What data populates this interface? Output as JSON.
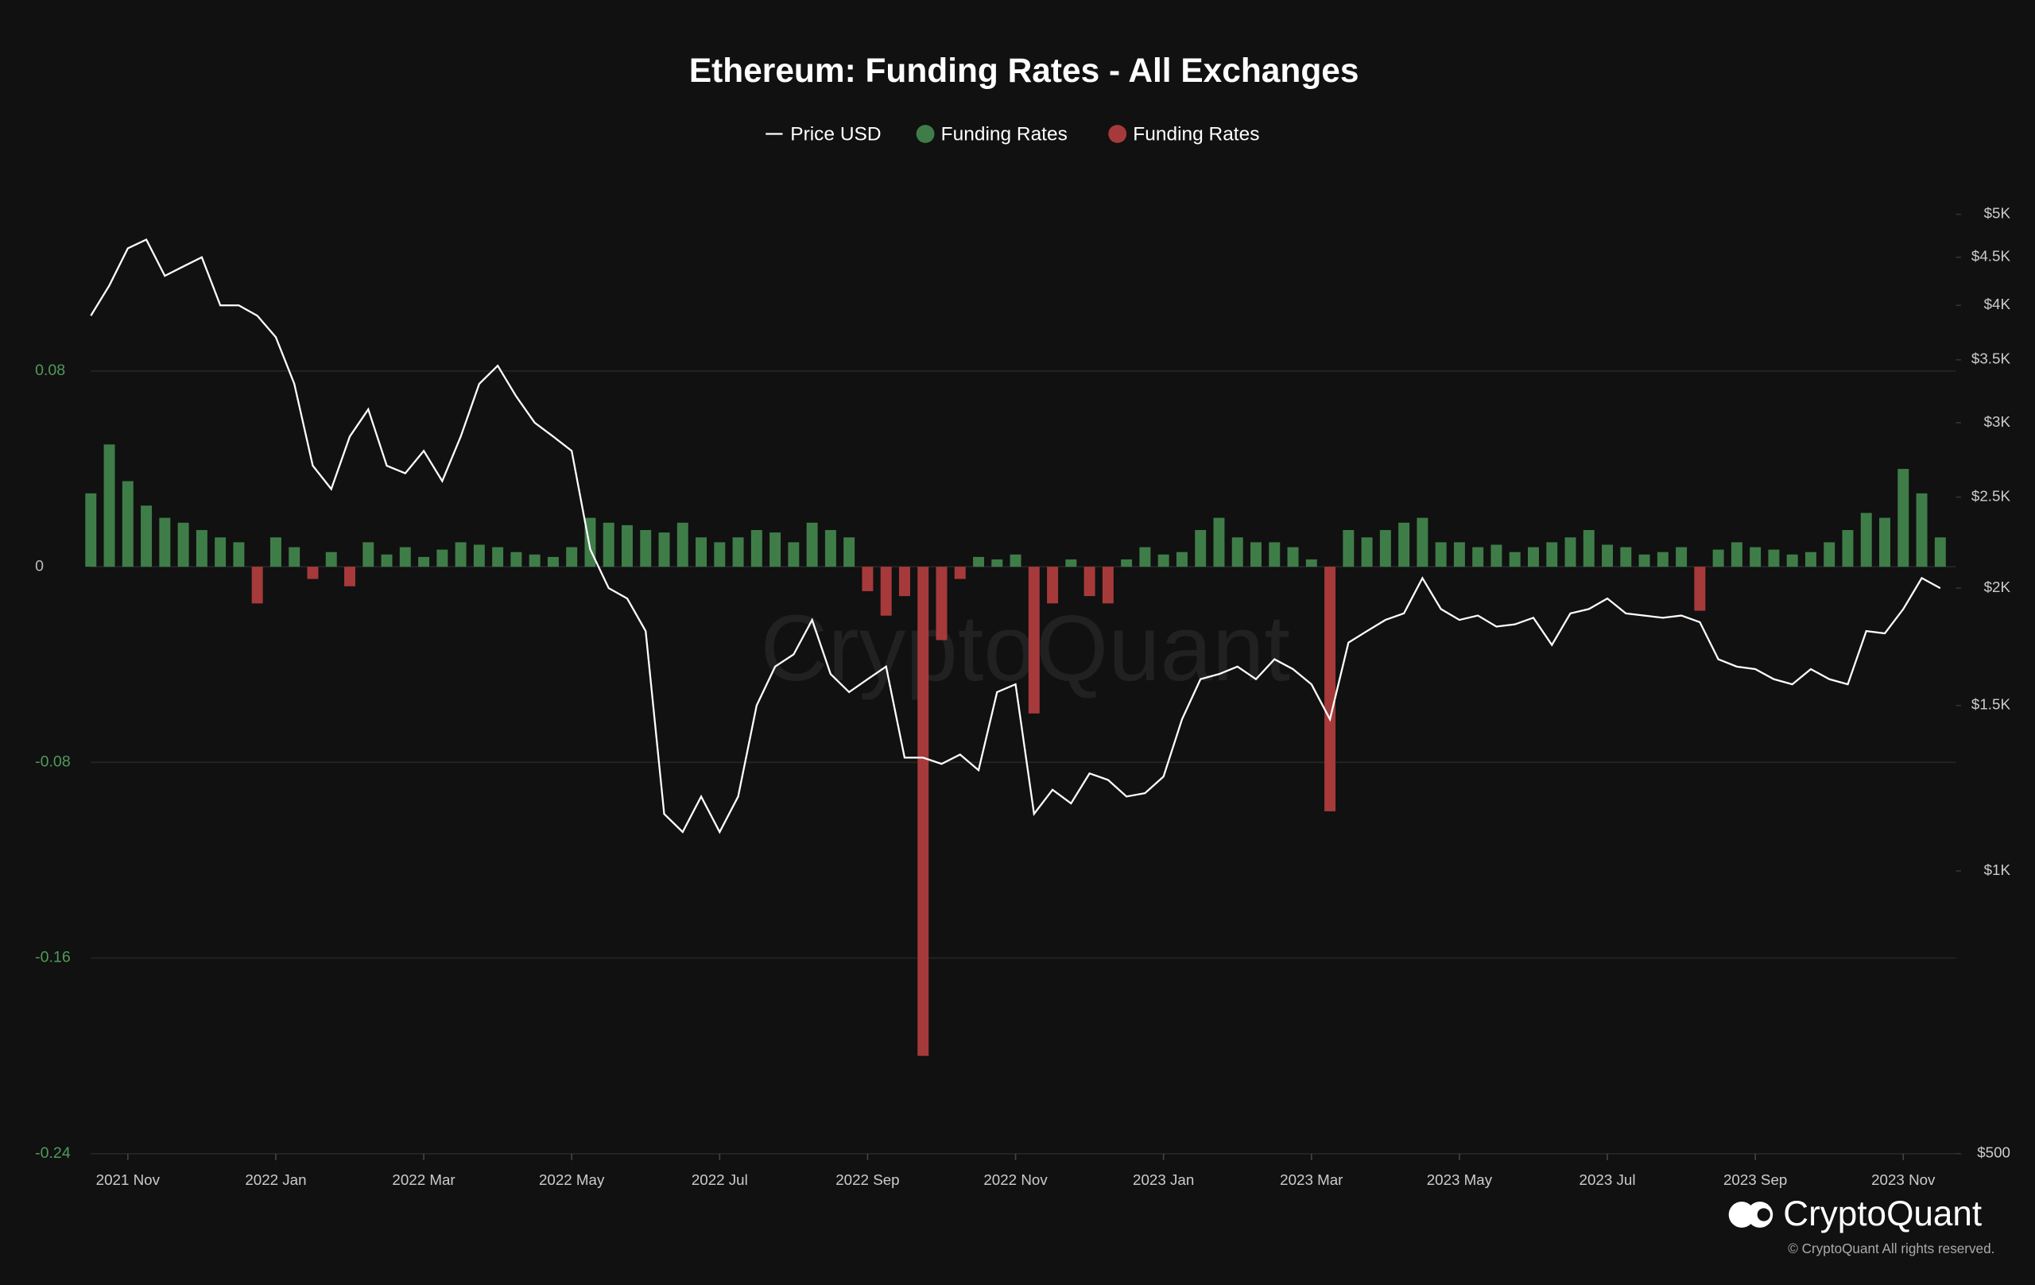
{
  "chart_data": {
    "type": "bar",
    "title": "Ethereum: Funding Rates - All Exchanges",
    "watermark": "CryptoQuant",
    "logo_text": "CryptoQuant",
    "copyright": "© CryptoQuant All rights reserved.",
    "categories": [
      null,
      null,
      "2021 Nov",
      null,
      null,
      null,
      null,
      null,
      null,
      null,
      "2022 Jan",
      null,
      null,
      null,
      null,
      null,
      null,
      null,
      "2022 Mar",
      null,
      null,
      null,
      null,
      null,
      null,
      null,
      "2022 May",
      null,
      null,
      null,
      null,
      null,
      null,
      null,
      "2022 Jul",
      null,
      null,
      null,
      null,
      null,
      null,
      null,
      "2022 Sep",
      null,
      null,
      null,
      null,
      null,
      null,
      null,
      "2022 Nov",
      null,
      null,
      null,
      null,
      null,
      null,
      null,
      "2023 Jan",
      null,
      null,
      null,
      null,
      null,
      null,
      null,
      "2023 Mar",
      null,
      null,
      null,
      null,
      null,
      null,
      null,
      "2023 May",
      null,
      null,
      null,
      null,
      null,
      null,
      null,
      "2023 Jul",
      null,
      null,
      null,
      null,
      null,
      null,
      null,
      "2023 Sep",
      null,
      null,
      null,
      null,
      null,
      null,
      null,
      "2023 Nov",
      null,
      null
    ],
    "series": [
      {
        "name": "Price USD",
        "type": "line",
        "axis": "y2",
        "color": "#ffffff",
        "values": [
          3900,
          4200,
          4600,
          4700,
          4300,
          4400,
          4500,
          4000,
          4000,
          3900,
          3700,
          3300,
          2700,
          2550,
          2900,
          3100,
          2700,
          2650,
          2800,
          2600,
          2900,
          3300,
          3450,
          3200,
          3000,
          2900,
          2800,
          2200,
          2000,
          1950,
          1800,
          1150,
          1100,
          1200,
          1100,
          1200,
          1500,
          1650,
          1700,
          1850,
          1620,
          1550,
          1600,
          1650,
          1320,
          1320,
          1300,
          1330,
          1280,
          1550,
          1580,
          1150,
          1220,
          1180,
          1270,
          1250,
          1200,
          1210,
          1260,
          1450,
          1600,
          1620,
          1650,
          1600,
          1680,
          1640,
          1580,
          1450,
          1750,
          1800,
          1850,
          1880,
          2050,
          1900,
          1850,
          1870,
          1820,
          1830,
          1860,
          1740,
          1880,
          1900,
          1950,
          1880,
          1870,
          1860,
          1870,
          1840,
          1680,
          1650,
          1640,
          1600,
          1580,
          1640,
          1600,
          1580,
          1800,
          1790,
          1900,
          2050,
          2000
        ]
      },
      {
        "name": "Funding Rates",
        "type": "bar",
        "color": "#3f7d48",
        "values": [
          0.03,
          0.05,
          0.035,
          0.025,
          0.02,
          0.018,
          0.015,
          0.012,
          0.01,
          null,
          0.012,
          0.008,
          null,
          0.006,
          null,
          0.01,
          0.005,
          0.008,
          0.004,
          0.007,
          0.01,
          0.009,
          0.008,
          0.006,
          0.005,
          0.004,
          0.008,
          0.02,
          0.018,
          0.017,
          0.015,
          0.014,
          0.018,
          0.012,
          0.01,
          0.012,
          0.015,
          0.014,
          0.01,
          0.018,
          0.015,
          0.012,
          null,
          null,
          null,
          null,
          null,
          null,
          0.004,
          0.003,
          0.005,
          null,
          null,
          0.003,
          null,
          null,
          0.003,
          0.008,
          0.005,
          0.006,
          0.015,
          0.02,
          0.012,
          0.01,
          0.01,
          0.008,
          0.003,
          null,
          0.015,
          0.012,
          0.015,
          0.018,
          0.02,
          0.01,
          0.01,
          0.008,
          0.009,
          0.006,
          0.008,
          0.01,
          0.012,
          0.015,
          0.009,
          0.008,
          0.005,
          0.006,
          0.008,
          null,
          0.007,
          0.01,
          0.008,
          0.007,
          0.005,
          0.006,
          0.01,
          0.015,
          0.022,
          0.02,
          0.04,
          0.03,
          0.012
        ]
      },
      {
        "name": "Funding Rates",
        "type": "bar",
        "color": "#a63a3a",
        "values": [
          null,
          null,
          null,
          null,
          null,
          null,
          null,
          null,
          null,
          -0.015,
          null,
          null,
          -0.005,
          null,
          -0.008,
          null,
          null,
          null,
          null,
          null,
          null,
          null,
          null,
          null,
          null,
          null,
          null,
          null,
          null,
          null,
          null,
          null,
          null,
          null,
          null,
          null,
          null,
          null,
          null,
          null,
          null,
          null,
          -0.01,
          -0.02,
          -0.012,
          -0.2,
          -0.03,
          -0.005,
          null,
          null,
          null,
          -0.06,
          -0.015,
          null,
          -0.012,
          -0.015,
          null,
          null,
          null,
          null,
          null,
          null,
          null,
          null,
          null,
          null,
          null,
          -0.1,
          null,
          null,
          null,
          null,
          null,
          null,
          null,
          null,
          null,
          null,
          null,
          null,
          null,
          null,
          null,
          null,
          null,
          null,
          null,
          -0.018,
          null,
          null,
          null,
          null,
          null,
          null,
          null,
          null,
          null,
          null,
          null,
          null,
          null
        ]
      }
    ],
    "ylim": [
      -0.24,
      0.16
    ],
    "yticks": [
      0.08,
      0,
      -0.08,
      -0.16,
      -0.24
    ],
    "y2lim": [
      500,
      5500
    ],
    "y2log": true,
    "y2ticks": [
      {
        "value": 5000,
        "label": "$5K"
      },
      {
        "value": 4500,
        "label": "$4.5K"
      },
      {
        "value": 4000,
        "label": "$4K"
      },
      {
        "value": 3500,
        "label": "$3.5K"
      },
      {
        "value": 3000,
        "label": "$3K"
      },
      {
        "value": 2500,
        "label": "$2.5K"
      },
      {
        "value": 2000,
        "label": "$2K"
      },
      {
        "value": 1500,
        "label": "$1.5K"
      },
      {
        "value": 1000,
        "label": "$1K"
      },
      {
        "value": 500,
        "label": "$500"
      }
    ],
    "grid": true,
    "legend": "top"
  }
}
